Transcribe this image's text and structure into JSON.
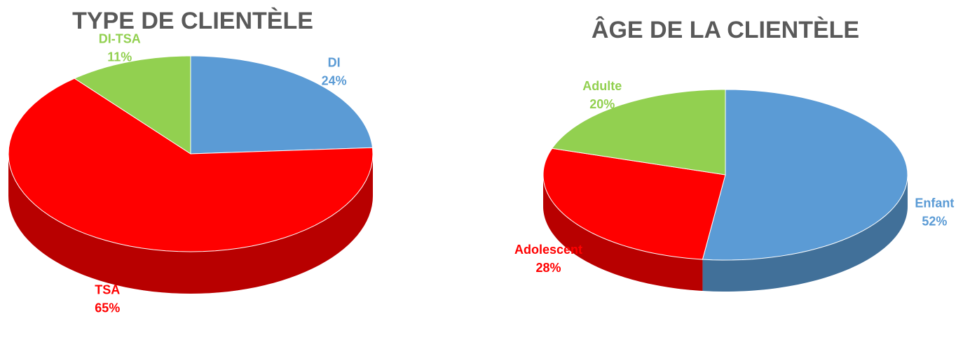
{
  "chart_data": [
    {
      "type": "pie",
      "title": "TYPE DE CLIENTÈLE",
      "categories": [
        "DI",
        "TSA",
        "DI-TSA"
      ],
      "values": [
        24,
        65,
        11
      ],
      "value_labels": [
        "24%",
        "65%",
        "11%"
      ],
      "colors": [
        "#5b9bd5",
        "#ff0000",
        "#92d050"
      ]
    },
    {
      "type": "pie",
      "title": "ÂGE DE LA CLIENTÈLE",
      "categories": [
        "Enfant",
        "Adolescent",
        "Adulte"
      ],
      "values": [
        52,
        28,
        20
      ],
      "value_labels": [
        "52%",
        "28%",
        "20%"
      ],
      "colors": [
        "#5b9bd5",
        "#ff0000",
        "#92d050"
      ]
    }
  ]
}
